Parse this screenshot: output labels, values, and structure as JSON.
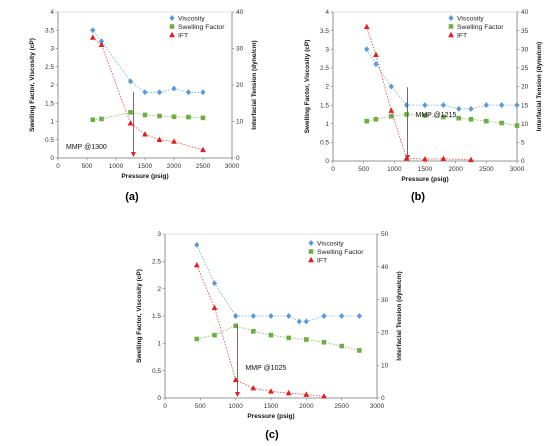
{
  "chart_data": [
    {
      "type": "scatter",
      "panel": "(a)",
      "ylabel": "Swelling Factor, Viscosity (cP)",
      "y2label": "Interfacial Tension (dyne/cm)",
      "xlabel": "Pressure (psig)",
      "xlim": [
        0,
        3000
      ],
      "xticks": [
        0,
        500,
        1000,
        1500,
        2000,
        2500,
        3000
      ],
      "ylim": [
        0,
        4
      ],
      "yticks": [
        0,
        0.5,
        1,
        1.5,
        2,
        2.5,
        3,
        3.5,
        4
      ],
      "y2lim": [
        0,
        40
      ],
      "y2ticks": [
        0,
        10,
        20,
        30,
        40
      ],
      "legend": [
        "Viscosity",
        "Swelling Factor",
        "IFT"
      ],
      "legend_position": "top-right",
      "grid": false,
      "series": [
        {
          "name": "Viscosity",
          "axis": "left",
          "marker": "diamond",
          "color": "#5b9bd5",
          "x": [
            600,
            750,
            1250,
            1500,
            1750,
            2000,
            2250,
            2500
          ],
          "y": [
            3.5,
            3.2,
            2.1,
            1.8,
            1.8,
            1.9,
            1.8,
            1.8
          ]
        },
        {
          "name": "Swelling Factor",
          "axis": "left",
          "marker": "square",
          "color": "#70ad47",
          "x": [
            600,
            750,
            1250,
            1500,
            1750,
            2000,
            2250,
            2500
          ],
          "y": [
            1.05,
            1.07,
            1.25,
            1.18,
            1.15,
            1.13,
            1.12,
            1.1
          ]
        },
        {
          "name": "IFT",
          "axis": "right",
          "marker": "triangle",
          "color": "#e02020",
          "x": [
            600,
            750,
            1250,
            1500,
            1750,
            2000,
            2500
          ],
          "y": [
            33,
            31,
            9.5,
            6.5,
            5,
            4.5,
            2.2
          ]
        }
      ],
      "annotation": {
        "text": "MMP @1300",
        "x": 1300
      }
    },
    {
      "type": "scatter",
      "panel": "(b)",
      "ylabel": "Swelling Factor, Viscosity (cP)",
      "y2label": "Interfacial Tension (dyne/cm)",
      "xlabel": "Pressure (psig)",
      "xlim": [
        0,
        3000
      ],
      "xticks": [
        0,
        500,
        1000,
        1500,
        2000,
        2500,
        3000
      ],
      "ylim": [
        0,
        4
      ],
      "yticks": [
        0,
        0.5,
        1,
        1.5,
        2,
        2.5,
        3,
        3.5,
        4
      ],
      "y2lim": [
        0,
        40
      ],
      "y2ticks": [
        0,
        5,
        10,
        15,
        20,
        25,
        30,
        35,
        40
      ],
      "legend": [
        "Viscosity",
        "Swelling Factor",
        "IFT"
      ],
      "legend_position": "top-right",
      "grid": false,
      "series": [
        {
          "name": "Viscosity",
          "axis": "left",
          "marker": "diamond",
          "color": "#5b9bd5",
          "x": [
            550,
            700,
            950,
            1200,
            1500,
            1800,
            2050,
            2250,
            2500,
            2750,
            3000
          ],
          "y": [
            3.0,
            2.6,
            2.0,
            1.5,
            1.5,
            1.5,
            1.4,
            1.4,
            1.5,
            1.5,
            1.5
          ]
        },
        {
          "name": "Swelling Factor",
          "axis": "left",
          "marker": "square",
          "color": "#70ad47",
          "x": [
            550,
            700,
            950,
            1200,
            1500,
            1800,
            2050,
            2250,
            2500,
            2750,
            3000
          ],
          "y": [
            1.07,
            1.12,
            1.2,
            1.25,
            1.22,
            1.18,
            1.15,
            1.12,
            1.07,
            1.02,
            0.95
          ]
        },
        {
          "name": "IFT",
          "axis": "right",
          "marker": "triangle",
          "color": "#e02020",
          "x": [
            550,
            700,
            950,
            1200,
            1500,
            1800,
            2250
          ],
          "y": [
            36,
            28.5,
            13.5,
            0.7,
            0.5,
            0.6,
            0.3
          ]
        }
      ],
      "annotation": {
        "text": "MMP @1215",
        "x": 1215
      }
    },
    {
      "type": "scatter",
      "panel": "(c)",
      "ylabel": "Swelling Factor, Viscosity (cP)",
      "y2label": "Interfacial Tension (dyne/cm)",
      "xlabel": "Pressure (psig)",
      "xlim": [
        0,
        3000
      ],
      "xticks": [
        0,
        500,
        1000,
        1500,
        2000,
        2500,
        3000
      ],
      "ylim": [
        0,
        3
      ],
      "yticks": [
        0,
        0.5,
        1,
        1.5,
        2,
        2.5,
        3
      ],
      "y2lim": [
        0,
        50
      ],
      "y2ticks": [
        0,
        10,
        20,
        30,
        40,
        50
      ],
      "legend": [
        "Viscosity",
        "Swelling Factor",
        "IFT"
      ],
      "legend_position": "top-right",
      "grid": false,
      "series": [
        {
          "name": "Viscosity",
          "axis": "left",
          "marker": "diamond",
          "color": "#5b9bd5",
          "x": [
            450,
            700,
            1000,
            1250,
            1500,
            1750,
            1900,
            2000,
            2250,
            2500,
            2750
          ],
          "y": [
            2.8,
            2.1,
            1.5,
            1.5,
            1.5,
            1.5,
            1.4,
            1.4,
            1.5,
            1.5,
            1.5
          ]
        },
        {
          "name": "Swelling Factor",
          "axis": "left",
          "marker": "square",
          "color": "#70ad47",
          "x": [
            450,
            700,
            1000,
            1250,
            1500,
            1750,
            2000,
            2250,
            2500,
            2750
          ],
          "y": [
            1.08,
            1.15,
            1.32,
            1.22,
            1.15,
            1.1,
            1.07,
            1.02,
            0.95,
            0.87
          ]
        },
        {
          "name": "IFT",
          "axis": "right",
          "marker": "triangle",
          "color": "#e02020",
          "x": [
            450,
            700,
            1000,
            1250,
            1500,
            1750,
            2000,
            2250
          ],
          "y": [
            40.5,
            27.5,
            5.5,
            3.0,
            2.0,
            1.5,
            1.0,
            0.5
          ]
        }
      ],
      "annotation": {
        "text": "MMP @1025",
        "x": 1025
      }
    }
  ]
}
